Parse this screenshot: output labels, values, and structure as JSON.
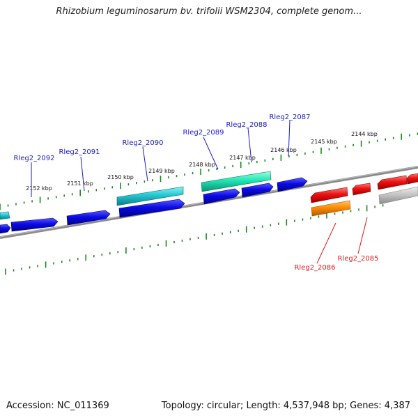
{
  "title": "Rhizobium leguminosarum bv. trifolii WSM2304, complete genom...",
  "footer": {
    "accession": "Accession: NC_011369",
    "summary": "Topology: circular; Length: 4,537,948 bp; Genes: 4,387"
  },
  "kbp_labels": [
    "2152 kbp",
    "2151 kbp",
    "2150 kbp",
    "2149 kbp",
    "2148 kbp",
    "2147 kbp",
    "2146 kbp",
    "2145 kbp",
    "2144 kbp"
  ],
  "gene_labels_forward": [
    "Rleg2_2092",
    "Rleg2_2091",
    "Rleg2_2090",
    "Rleg2_2089",
    "Rleg2_2088",
    "Rleg2_2087"
  ],
  "gene_labels_reverse": [
    "Rleg2_2086",
    "Rleg2_2085"
  ],
  "colors": {
    "forward_label": "#1a1acc",
    "reverse_label": "#dd1a1a",
    "forward_gene": "#0a0ae6",
    "cyan_gene": "#22c8d2",
    "teal_gene": "#1ee6b4",
    "reverse_gene": "#ee1111",
    "orange_gene": "#ff8c00",
    "grey_gene": "#c0c0c0",
    "backbone": "#8a8a8a",
    "tick": "#1a8a1a"
  }
}
